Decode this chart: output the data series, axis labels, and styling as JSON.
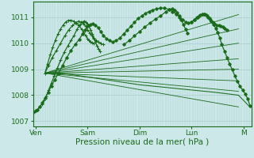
{
  "bg_color": "#cce8e8",
  "grid_color": "#aacccc",
  "line_color": "#1a6b1a",
  "xlabel": "Pression niveau de la mer( hPa )",
  "xtick_labels": [
    "Ven",
    "Sam",
    "Dim",
    "Lun",
    "M"
  ],
  "xtick_positions": [
    0,
    1,
    2,
    3,
    4
  ],
  "ylim": [
    1006.8,
    1011.6
  ],
  "yticks": [
    1007,
    1008,
    1009,
    1010,
    1011
  ],
  "xlim": [
    -0.05,
    4.15
  ],
  "tick_fontsize": 6.5,
  "label_fontsize": 7.5,
  "pivot_x": 0.18,
  "pivot_y": 1008.85,
  "fan_endpoints": [
    [
      3.9,
      1011.1
    ],
    [
      3.9,
      1010.55
    ],
    [
      3.9,
      1010.0
    ],
    [
      3.9,
      1009.4
    ],
    [
      3.9,
      1009.0
    ],
    [
      3.9,
      1008.55
    ],
    [
      3.9,
      1008.15
    ],
    [
      3.9,
      1007.55
    ]
  ]
}
